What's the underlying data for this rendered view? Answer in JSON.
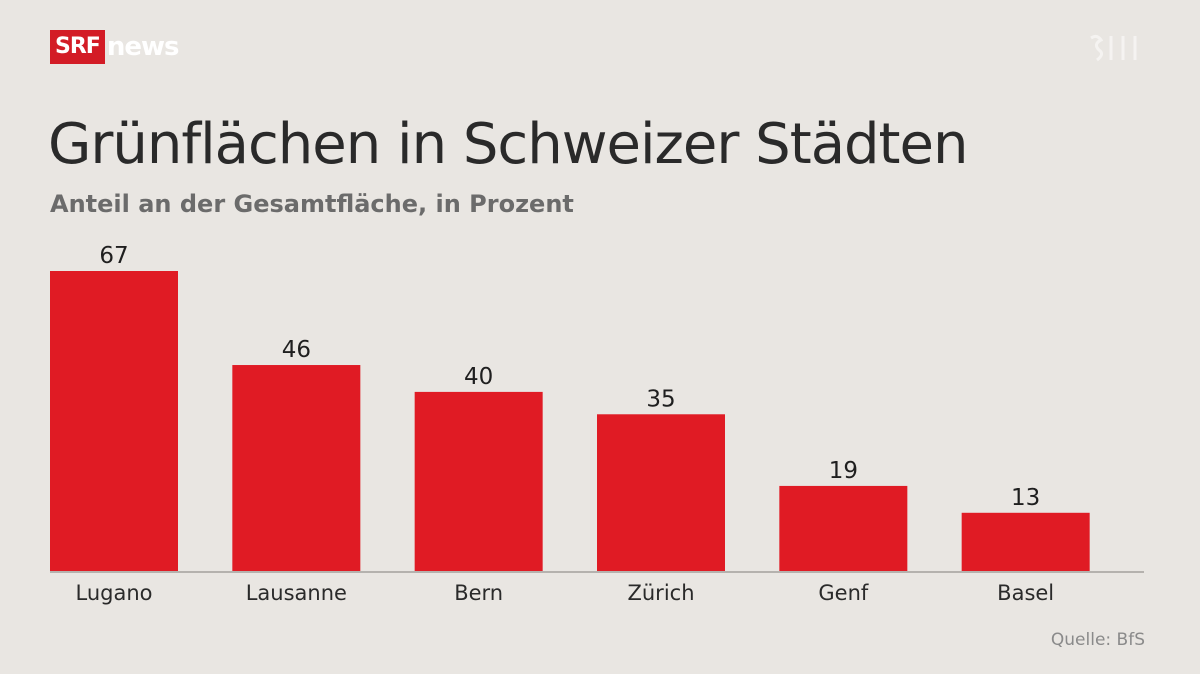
{
  "branding": {
    "logo_box": "SRF",
    "logo_text": "news",
    "watermark_icon": "srf-watermark-icon"
  },
  "colors": {
    "background": "#e9e6e2",
    "bar": "#e01b24",
    "axis": "#b5b2ae",
    "logo": "#d31c26"
  },
  "chart_data": {
    "type": "bar",
    "title": "Grünflächen in Schweizer Städten",
    "subtitle": "Anteil an der Gesamtfläche, in Prozent",
    "xlabel": "",
    "ylabel": "",
    "categories": [
      "Lugano",
      "Lausanne",
      "Bern",
      "Zürich",
      "Genf",
      "Basel"
    ],
    "values": [
      67,
      46,
      40,
      35,
      19,
      13
    ],
    "ylim": [
      0,
      67
    ],
    "grid": false,
    "legend": "none",
    "source": "Quelle: BfS"
  }
}
